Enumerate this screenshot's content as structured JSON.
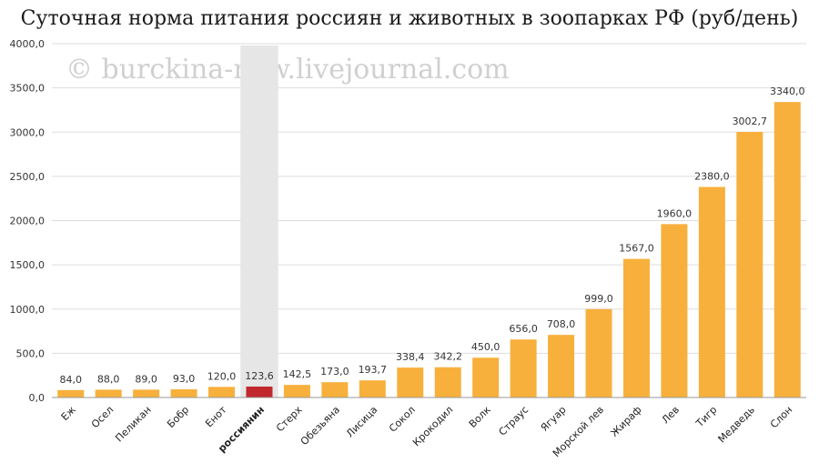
{
  "chart_data": {
    "type": "bar",
    "title": "Суточная норма питания россиян и животных в зоопарках РФ (руб/день)",
    "watermark": "© burckina-new.livejournal.com",
    "categories": [
      "Еж",
      "Осел",
      "Пеликан",
      "Бобр",
      "Енот",
      "россиянин",
      "Стерх",
      "Обезьяна",
      "Лисица",
      "Сокол",
      "Крокодил",
      "Волк",
      "Страус",
      "Ягуар",
      "Морской лев",
      "Жираф",
      "Лев",
      "Тигр",
      "Медведь",
      "Слон"
    ],
    "values": [
      84.0,
      88.0,
      89.0,
      93.0,
      120.0,
      123.6,
      142.5,
      173.0,
      193.7,
      338.4,
      342.2,
      450.0,
      656.0,
      708.0,
      999.0,
      1567.0,
      1960.0,
      2380.0,
      3002.7,
      3340.0
    ],
    "value_labels": [
      "84,0",
      "88,0",
      "89,0",
      "93,0",
      "120,0",
      "123,6",
      "142,5",
      "173,0",
      "193,7",
      "338,4",
      "342,2",
      "450,0",
      "656,0",
      "708,0",
      "999,0",
      "1567,0",
      "1960,0",
      "2380,0",
      "3002,7",
      "3340,0"
    ],
    "highlight_category": "россиянин",
    "ylim": [
      0,
      4000
    ],
    "yticks": [
      0,
      500,
      1000,
      1500,
      2000,
      2500,
      3000,
      3500,
      4000
    ],
    "ytick_labels": [
      "0,0",
      "500,0",
      "1000,0",
      "1500,0",
      "2000,0",
      "2500,0",
      "3000,0",
      "3500,0",
      "4000,0"
    ],
    "xlabel": "",
    "ylabel": "",
    "grid": true,
    "colors": {
      "bar": "#f8b03c",
      "highlight_bar": "#c0282e",
      "highlight_band": "#e6e6e6",
      "grid": "#dddddd"
    }
  }
}
